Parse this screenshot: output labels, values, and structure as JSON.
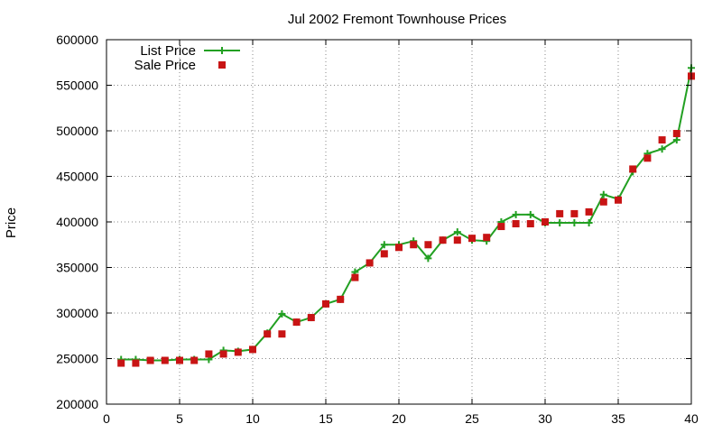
{
  "chart_data": {
    "type": "line",
    "title": "Jul 2002 Fremont Townhouse Prices",
    "xlabel": "",
    "ylabel": "Price",
    "xlim": [
      0,
      40
    ],
    "ylim": [
      200000,
      600000
    ],
    "x_ticks": [
      0,
      5,
      10,
      15,
      20,
      25,
      30,
      35,
      40
    ],
    "y_ticks": [
      200000,
      250000,
      300000,
      350000,
      400000,
      450000,
      500000,
      550000,
      600000
    ],
    "grid": true,
    "legend_position": "top-left",
    "x": [
      1,
      2,
      3,
      4,
      5,
      6,
      7,
      8,
      9,
      10,
      11,
      12,
      13,
      14,
      15,
      16,
      17,
      18,
      19,
      20,
      21,
      22,
      23,
      24,
      25,
      26,
      27,
      28,
      29,
      30,
      31,
      32,
      33,
      34,
      35,
      36,
      37,
      38,
      39,
      40
    ],
    "series": [
      {
        "name": "List Price",
        "style": "line-cross",
        "color": "#22a022",
        "values": [
          249000,
          249000,
          248000,
          248000,
          249000,
          249000,
          249000,
          259000,
          258000,
          260000,
          278000,
          299000,
          290000,
          295000,
          310000,
          315000,
          345000,
          355000,
          375000,
          375000,
          379000,
          360000,
          380000,
          389000,
          380000,
          379000,
          400000,
          408000,
          408000,
          399000,
          399000,
          399000,
          399000,
          430000,
          425000,
          455000,
          475000,
          480000,
          490000,
          569000
        ]
      },
      {
        "name": "Sale Price",
        "style": "square-markers",
        "color": "#c81414",
        "values": [
          245000,
          245000,
          248000,
          248000,
          248000,
          248000,
          255000,
          255000,
          257000,
          260000,
          277000,
          277000,
          290000,
          295000,
          310000,
          315000,
          339000,
          355000,
          365000,
          372000,
          375000,
          375000,
          380000,
          380000,
          382000,
          383000,
          395000,
          398000,
          398000,
          400000,
          409000,
          409000,
          411000,
          422000,
          424000,
          458000,
          470000,
          490000,
          497000,
          560000
        ]
      }
    ]
  }
}
